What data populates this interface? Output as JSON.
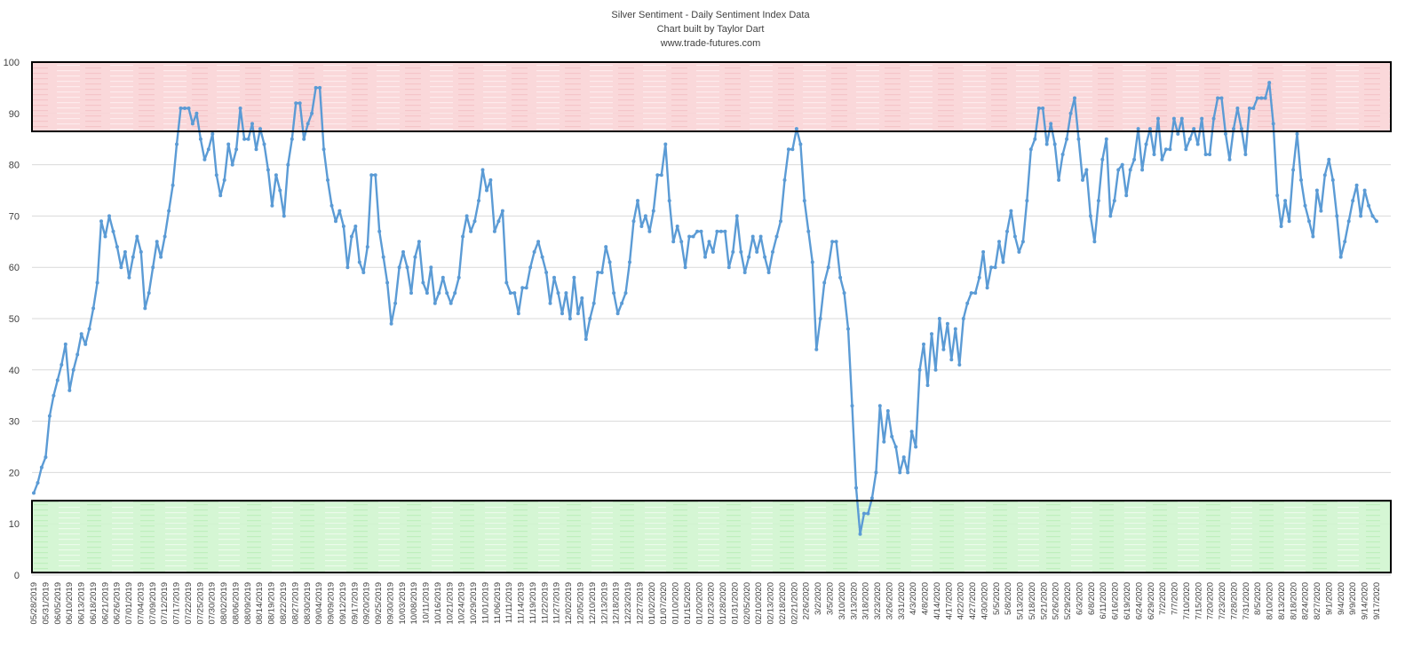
{
  "chart_data": {
    "type": "line",
    "title": "Silver Sentiment - Daily Sentiment Index Data",
    "subtitle": "Chart built by Taylor Dart",
    "source": "www.trade-futures.com",
    "xlabel": "",
    "ylabel": "",
    "ylim": [
      0,
      100
    ],
    "yticks": [
      0,
      10,
      20,
      30,
      40,
      50,
      60,
      70,
      80,
      90,
      100
    ],
    "grid": true,
    "colors": {
      "line": "#5b9bd5",
      "overbought_zone": "#f9d4d6",
      "oversold_zone": "#d0f5cf",
      "zone_border": "#000000",
      "grid": "#d9d9d9",
      "text": "#404040"
    },
    "zones": [
      {
        "name": "overbought",
        "from": 86.5,
        "to": 100
      },
      {
        "name": "oversold",
        "from": 0.5,
        "to": 14.5
      }
    ],
    "x_tick_labels": [
      "05/28/2019",
      "05/31/2019",
      "06/05/2019",
      "06/10/2019",
      "06/13/2019",
      "06/18/2019",
      "06/21/2019",
      "06/26/2019",
      "07/01/2019",
      "07/04/2019",
      "07/09/2019",
      "07/12/2019",
      "07/17/2019",
      "07/22/2019",
      "07/25/2019",
      "07/30/2019",
      "08/02/2019",
      "08/06/2019",
      "08/09/2019",
      "08/14/2019",
      "08/19/2019",
      "08/22/2019",
      "08/27/2019",
      "08/30/2019",
      "09/04/2019",
      "09/09/2019",
      "09/12/2019",
      "09/17/2019",
      "09/20/2019",
      "09/25/2019",
      "09/30/2019",
      "10/03/2019",
      "10/08/2019",
      "10/11/2019",
      "10/16/2019",
      "10/21/2019",
      "10/24/2019",
      "10/29/2019",
      "11/01/2019",
      "11/06/2019",
      "11/11/2019",
      "11/14/2019",
      "11/19/2019",
      "11/22/2019",
      "11/27/2019",
      "12/02/2019",
      "12/05/2019",
      "12/10/2019",
      "12/13/2019",
      "12/18/2019",
      "12/23/2019",
      "12/27/2019",
      "01/02/2020",
      "01/07/2020",
      "01/10/2020",
      "01/15/2020",
      "01/20/2020",
      "01/23/2020",
      "01/28/2020",
      "01/31/2020",
      "02/05/2020",
      "02/10/2020",
      "02/13/2020",
      "02/18/2020",
      "02/21/2020",
      "2/26/2020",
      "3/2/2020",
      "3/5/2020",
      "3/10/2020",
      "3/13/2020",
      "3/18/2020",
      "3/23/2020",
      "3/26/2020",
      "3/31/2020",
      "4/3/2020",
      "4/8/2020",
      "4/14/2020",
      "4/17/2020",
      "4/22/2020",
      "4/27/2020",
      "4/30/2020",
      "5/5/2020",
      "5/8/2020",
      "5/13/2020",
      "5/18/2020",
      "5/21/2020",
      "5/26/2020",
      "5/29/2020",
      "6/3/2020",
      "6/8/2020",
      "6/11/2020",
      "6/16/2020",
      "6/19/2020",
      "6/24/2020",
      "6/29/2020",
      "7/2/2020",
      "7/7/2020",
      "7/10/2020",
      "7/15/2020",
      "7/20/2020",
      "7/23/2020",
      "7/28/2020",
      "7/31/2020",
      "8/5/2020",
      "8/10/2020",
      "8/13/2020",
      "8/18/2020",
      "8/24/2020",
      "8/27/2020",
      "9/1/2020",
      "9/4/2020",
      "9/9/2020",
      "9/14/2020",
      "9/17/2020"
    ],
    "series": [
      {
        "values": [
          16,
          18,
          21,
          23,
          31,
          35,
          38,
          41,
          45,
          36,
          40,
          43,
          47,
          45,
          48,
          52,
          57,
          69,
          66,
          70,
          67,
          64,
          60,
          63,
          58,
          62,
          66,
          63,
          52,
          55,
          60,
          65,
          62,
          66,
          71,
          76,
          84,
          91,
          91,
          91,
          88,
          90,
          85,
          81,
          83,
          86,
          78,
          74,
          77,
          84,
          80,
          83,
          91,
          85,
          85,
          88,
          83,
          87,
          84,
          79,
          72,
          78,
          75,
          70,
          80,
          85,
          92,
          92,
          85,
          88,
          90,
          95,
          95,
          83,
          77,
          72,
          69,
          71,
          68,
          60,
          66,
          68,
          61,
          59,
          64,
          78,
          78,
          67,
          62,
          57,
          49,
          53,
          60,
          63,
          60,
          55,
          62,
          65,
          57,
          55,
          60,
          53,
          55,
          58,
          55,
          53,
          55,
          58,
          66,
          70,
          67,
          69,
          73,
          79,
          75,
          77,
          67,
          69,
          71,
          57,
          55,
          55,
          51,
          56,
          56,
          60,
          63,
          65,
          62,
          59,
          53,
          58,
          55,
          51,
          55,
          50,
          58,
          51,
          54,
          46,
          50,
          53,
          59,
          59,
          64,
          61,
          55,
          51,
          53,
          55,
          61,
          69,
          73,
          68,
          70,
          67,
          71,
          78,
          78,
          84,
          73,
          65,
          68,
          65,
          60,
          66,
          66,
          67,
          67,
          62,
          65,
          63,
          67,
          67,
          67,
          60,
          63,
          70,
          63,
          59,
          62,
          66,
          63,
          66,
          62,
          59,
          63,
          66,
          69,
          77,
          83,
          83,
          87,
          84,
          73,
          67,
          61,
          44,
          50,
          57,
          60,
          65,
          65,
          58,
          55,
          48,
          33,
          17,
          8,
          12,
          12,
          15,
          20,
          33,
          26,
          32,
          27,
          25,
          20,
          23,
          20,
          28,
          25,
          40,
          45,
          37,
          47,
          40,
          50,
          44,
          49,
          42,
          48,
          41,
          50,
          53,
          55,
          55,
          58,
          63,
          56,
          60,
          60,
          65,
          61,
          67,
          71,
          66,
          63,
          65,
          73,
          83,
          85,
          91,
          91,
          84,
          88,
          84,
          77,
          82,
          85,
          90,
          93,
          85,
          77,
          79,
          70,
          65,
          73,
          81,
          85,
          70,
          73,
          79,
          80,
          74,
          79,
          81,
          87,
          79,
          84,
          87,
          82,
          89,
          81,
          83,
          83,
          89,
          86,
          89,
          83,
          85,
          87,
          84,
          89,
          82,
          82,
          89,
          93,
          93,
          86,
          81,
          87,
          91,
          87,
          82,
          91,
          91,
          93,
          93,
          93,
          96,
          88,
          74,
          68,
          73,
          69,
          79,
          86,
          77,
          72,
          69,
          66,
          75,
          71,
          78,
          81,
          77,
          70,
          62,
          65,
          69,
          73,
          76,
          70,
          75,
          72,
          70,
          69
        ]
      }
    ]
  }
}
